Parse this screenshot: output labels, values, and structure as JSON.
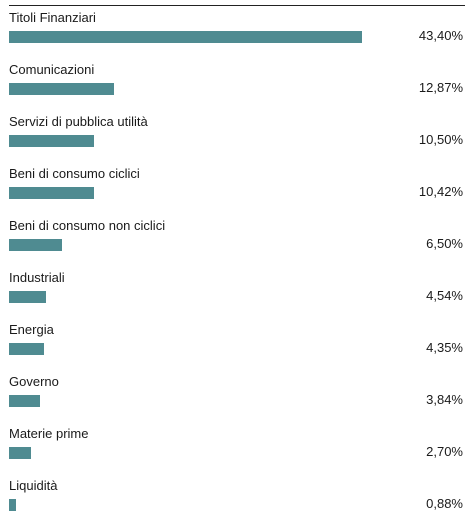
{
  "chart_data": {
    "type": "bar",
    "orientation": "horizontal",
    "categories": [
      "Titoli Finanziari",
      "Comunicazioni",
      "Servizi di pubblica utilità",
      "Beni di consumo ciclici",
      "Beni di consumo non ciclici",
      "Industriali",
      "Energia",
      "Governo",
      "Materie prime",
      "Liquidità"
    ],
    "values": [
      43.4,
      12.87,
      10.5,
      10.42,
      6.5,
      4.54,
      4.35,
      3.84,
      2.7,
      0.88
    ],
    "value_labels": [
      "43,40%",
      "12,87%",
      "10,50%",
      "10,42%",
      "6,50%",
      "4,54%",
      "4,35%",
      "3,84%",
      "2,70%",
      "0,88%"
    ],
    "bar_color": "#4f8b91",
    "grid": false,
    "legend": "none"
  }
}
